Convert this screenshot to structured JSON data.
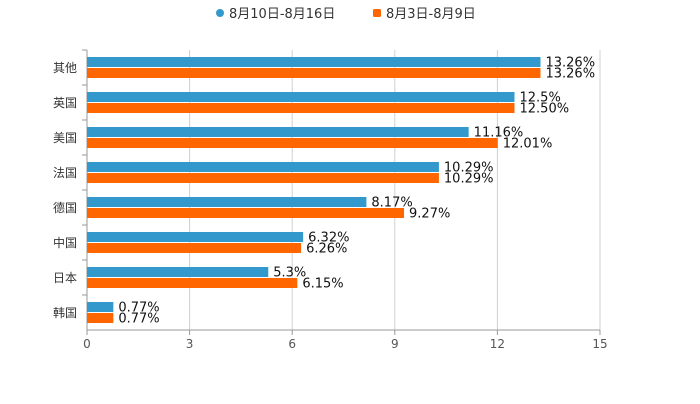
{
  "chart_data": {
    "type": "bar",
    "orientation": "horizontal",
    "title": "",
    "xlabel": "",
    "ylabel": "",
    "xlim": [
      0,
      15
    ],
    "ticks": [
      0,
      3,
      6,
      9,
      12,
      15
    ],
    "grid": true,
    "legend_position": "top-center",
    "categories": [
      "其他",
      "英国",
      "美国",
      "法国",
      "德国",
      "中国",
      "日本",
      "韩国"
    ],
    "series": [
      {
        "name": "8月10日-8月16日",
        "color": "#3399cc",
        "values": [
          13.26,
          12.5,
          11.16,
          10.29,
          8.17,
          6.32,
          5.3,
          0.77
        ],
        "labels": [
          "13.26%",
          "12.5%",
          "11.16%",
          "10.29%",
          "8.17%",
          "6.32%",
          "5.3%",
          "0.77%"
        ]
      },
      {
        "name": "8月3日-8月9日",
        "color": "#ff6600",
        "values": [
          13.26,
          12.5,
          12.01,
          10.29,
          9.27,
          6.26,
          6.15,
          0.77
        ],
        "labels": [
          "13.26%",
          "12.50%",
          "12.01%",
          "10.29%",
          "9.27%",
          "6.26%",
          "6.15%",
          "0.77%"
        ]
      }
    ]
  }
}
